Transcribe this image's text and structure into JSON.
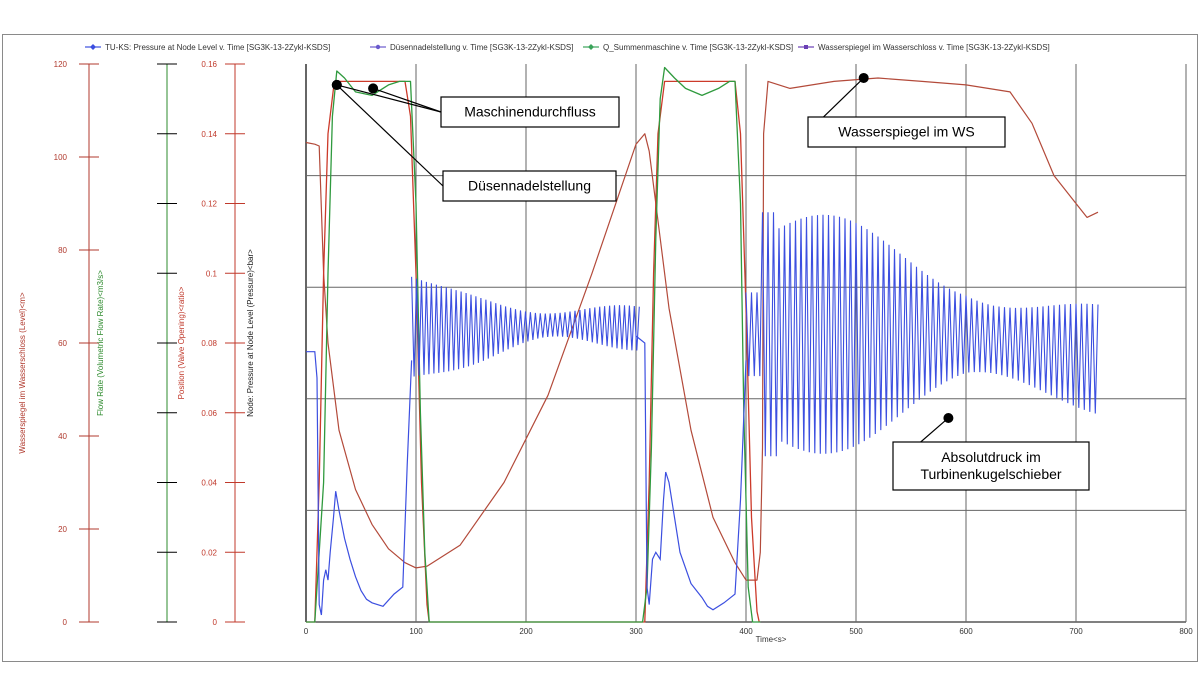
{
  "chart_data": {
    "type": "line",
    "xlabel": "Time<s>",
    "xlim": [
      0,
      800
    ],
    "x_ticks": [
      0,
      100,
      200,
      300,
      400,
      500,
      600,
      700,
      800
    ],
    "grid": true,
    "legend_position": "top",
    "axes": [
      {
        "id": "level",
        "label": "Wasserspiegel im Wasserschloss (Level)<m>",
        "color": "#b03a2e",
        "ylim": [
          0,
          120
        ],
        "ticks": [
          0,
          20,
          40,
          60,
          80,
          100,
          120
        ]
      },
      {
        "id": "flow",
        "label": "Flow Rate (Volumetric Flow Rate)<m3/s>",
        "color": "#2e8b2e",
        "ylim": [
          0,
          1
        ],
        "ticks": []
      },
      {
        "id": "position",
        "label": "Position (Valve Opening)<ratio>",
        "color": "#c0392b",
        "ylim": [
          0,
          0.16
        ],
        "ticks": [
          0,
          0.02,
          0.04,
          0.06,
          0.08,
          0.1,
          0.12,
          0.14,
          0.16
        ]
      },
      {
        "id": "pressure",
        "label": "Node: Pressure at Node Level (Pressure)<bar>",
        "color": "#222222",
        "ylim": [
          0,
          1
        ],
        "ticks": []
      }
    ],
    "series": [
      {
        "name": "TU-KS: Pressure at Node Level v. Time [SG3K-13-2Zykl-KSDS]",
        "color": "#3c4fe0",
        "marker": "diamond"
      },
      {
        "name": "Düsennadelstellung v. Time [SG3K-13-2Zykl-KSDS]",
        "color": "#6a5acd",
        "marker": "circle"
      },
      {
        "name": "Q_Summenmaschine v. Time [SG3K-13-2Zykl-KSDS]",
        "color": "#3aa35a",
        "marker": "diamond"
      },
      {
        "name": "Wasserspiegel im Wasserschloss v. Time [SG3K-13-2Zykl-KSDS]",
        "color": "#6a3fb5",
        "marker": "square"
      }
    ],
    "curves": {
      "level": {
        "axis": "position",
        "x": [
          0,
          8,
          12,
          16,
          20,
          30,
          45,
          60,
          75,
          90,
          100,
          110,
          140,
          180,
          220,
          260,
          300,
          308,
          312,
          330,
          350,
          370,
          390,
          400,
          410,
          413,
          415,
          416,
          420,
          440,
          480,
          520,
          560,
          600,
          640,
          660,
          680,
          700,
          710,
          720
        ],
        "y": [
          0.1375,
          0.137,
          0.1365,
          0.1,
          0.08,
          0.055,
          0.038,
          0.028,
          0.021,
          0.017,
          0.0155,
          0.016,
          0.022,
          0.04,
          0.065,
          0.1,
          0.137,
          0.14,
          0.135,
          0.09,
          0.055,
          0.03,
          0.017,
          0.012,
          0.012,
          0.02,
          0.05,
          0.14,
          0.155,
          0.153,
          0.155,
          0.156,
          0.155,
          0.154,
          0.152,
          0.143,
          0.128,
          0.12,
          0.116,
          0.1175
        ]
      },
      "flow": {
        "axis": "position",
        "x": [
          0,
          8,
          16,
          20,
          24,
          28,
          35,
          45,
          60,
          75,
          85,
          90,
          95,
          100,
          104,
          108,
          112,
          300,
          306,
          310,
          314,
          318,
          322,
          326,
          335,
          345,
          360,
          375,
          385,
          390,
          395,
          398,
          402,
          406,
          410,
          413
        ],
        "y": [
          0,
          0,
          0.04,
          0.1,
          0.145,
          0.158,
          0.156,
          0.152,
          0.151,
          0.154,
          0.155,
          0.155,
          0.155,
          0.12,
          0.06,
          0.02,
          0,
          0,
          0,
          0.01,
          0.05,
          0.11,
          0.15,
          0.159,
          0.156,
          0.153,
          0.151,
          0.153,
          0.155,
          0.155,
          0.12,
          0.06,
          0.01,
          0,
          0,
          0
        ]
      },
      "needle": {
        "axis": "position",
        "x": [
          0,
          8,
          12,
          16,
          20,
          25,
          30,
          50,
          70,
          90,
          95,
          100,
          105,
          110,
          112,
          300,
          308,
          312,
          316,
          320,
          326,
          340,
          360,
          380,
          390,
          395,
          400,
          405,
          410,
          412
        ],
        "y": [
          0,
          0,
          0.04,
          0.1,
          0.14,
          0.153,
          0.155,
          0.155,
          0.155,
          0.155,
          0.145,
          0.1,
          0.04,
          0.005,
          0,
          0,
          0,
          0.04,
          0.1,
          0.14,
          0.155,
          0.155,
          0.155,
          0.155,
          0.155,
          0.14,
          0.09,
          0.03,
          0.003,
          0
        ]
      },
      "pressure": {
        "axis": "position",
        "x": [
          0,
          7,
          8,
          10,
          12,
          14,
          16,
          18,
          20,
          22,
          25,
          27,
          30,
          35,
          40,
          45,
          50,
          55,
          60,
          70,
          80,
          88,
          92,
          96,
          100,
          300,
          308,
          310,
          312,
          315,
          318,
          322,
          325,
          327,
          330,
          335,
          340,
          350,
          360,
          365,
          370,
          380,
          390,
          395,
          400,
          415,
          720
        ],
        "y": [
          0.0775,
          0.0775,
          0.0775,
          0.07,
          0.005,
          0.002,
          0.012,
          0.015,
          0.012,
          0.02,
          0.03,
          0.0375,
          0.032,
          0.024,
          0.018,
          0.013,
          0.009,
          0.0065,
          0.0055,
          0.0045,
          0.008,
          0.01,
          0.045,
          0.075,
          0.082,
          0.082,
          0.08,
          0.01,
          0.005,
          0.018,
          0.02,
          0.018,
          0.035,
          0.043,
          0.04,
          0.03,
          0.02,
          0.011,
          0.007,
          0.0045,
          0.0035,
          0.0055,
          0.008,
          0.035,
          0.075,
          0.08,
          0.07
        ]
      }
    },
    "annotations": [
      {
        "text": "Maschinendurchfluss",
        "target": "flow",
        "points": [
          [
            28,
            0.154
          ],
          [
            61,
            0.153
          ]
        ]
      },
      {
        "text": "Düsennadelstellung",
        "target": "needle",
        "points": [
          [
            28,
            0.154
          ]
        ]
      },
      {
        "text": "Wasserspiegel im WS",
        "target": "level",
        "points": [
          [
            507,
            0.156
          ]
        ]
      },
      {
        "text": "Absolutdruck im\nTurbinenkugelschieber",
        "target": "pressure",
        "points": [
          [
            584,
            0.0585
          ]
        ]
      }
    ]
  }
}
